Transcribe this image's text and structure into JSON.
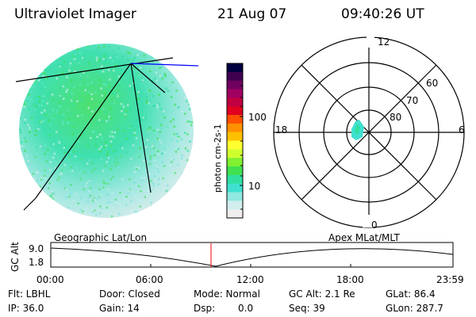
{
  "header": {
    "title": "Ultraviolet Imager",
    "date": "21 Aug 07",
    "time": "09:40:26 UT"
  },
  "colorbar": {
    "label": "photon cm-2s-1",
    "ticks": [
      "100",
      "10"
    ],
    "colors": [
      "#000040",
      "#400050",
      "#700060",
      "#a00060",
      "#c00040",
      "#e00020",
      "#ff5000",
      "#ff9000",
      "#ffc000",
      "#ffff30",
      "#d0ff30",
      "#80f030",
      "#40e050",
      "#30e0a0",
      "#40e0d0",
      "#90e8e0",
      "#d0eeee",
      "#eeeeee"
    ]
  },
  "polar": {
    "labels": {
      "top": "12",
      "left": "18",
      "right": "6",
      "bottom": "0"
    },
    "lat_labels": [
      "60",
      "70",
      "80"
    ]
  },
  "timeline": {
    "ylabel": "GC Alt",
    "yticks": [
      "9.0",
      "1.8"
    ],
    "left_title": "Geographic Lat/Lon",
    "right_title": "Apex MLat/MLT",
    "xticks": [
      "00:00",
      "06:00",
      "12:00",
      "18:00",
      "23:59"
    ]
  },
  "info": {
    "row1": [
      "Flt: LBHL",
      "Door: Closed",
      "Mode: Normal",
      "GC Alt: 2.1 Re",
      "GLat: 86.4"
    ],
    "row2": [
      "IP: 36.0",
      "Gain: 14",
      "Dsp:",
      "0.0",
      "Seq: 39",
      "GLon: 287.7"
    ]
  },
  "colors": {
    "accent_line": "#0000ff",
    "marker": "#ff0000"
  }
}
